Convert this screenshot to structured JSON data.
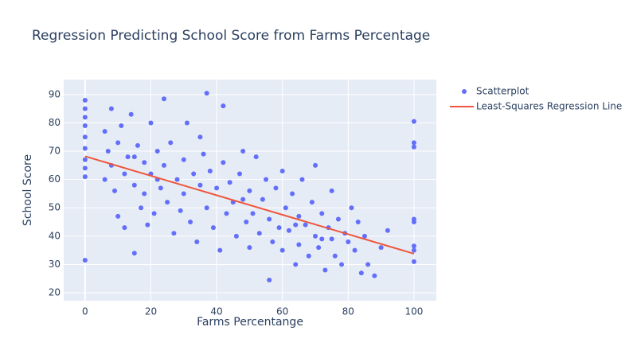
{
  "chart_data": {
    "type": "scatter",
    "title": "Regression Predicting School Score from Farms Percentage",
    "x_label": "Farms Percentange",
    "y_label": "School Score",
    "xlim": [
      -6.5,
      106.8
    ],
    "ylim": [
      17.2,
      95.3
    ],
    "xticks": [
      0,
      20,
      40,
      60,
      80,
      100
    ],
    "yticks": [
      20,
      30,
      40,
      50,
      60,
      70,
      80,
      90
    ],
    "grid": true,
    "background": "#e5ecf6",
    "legend": "right",
    "series": [
      {
        "name": "Scatterplot",
        "type": "scatter",
        "color": "#636efa",
        "x": [
          0,
          0,
          0,
          0,
          0,
          0,
          0,
          0,
          0,
          0,
          6,
          6,
          7,
          8,
          8,
          9,
          10,
          10,
          11,
          12,
          12,
          13,
          14,
          15,
          15,
          16,
          17,
          18,
          18,
          19,
          20,
          20,
          21,
          22,
          23,
          24,
          24,
          25,
          26,
          27,
          28,
          29,
          30,
          30,
          31,
          32,
          33,
          34,
          35,
          36,
          37,
          37,
          38,
          39,
          40,
          41,
          42,
          42,
          43,
          44,
          45,
          46,
          47,
          48,
          49,
          50,
          50,
          51,
          52,
          53,
          54,
          55,
          56,
          56,
          57,
          58,
          59,
          60,
          60,
          61,
          62,
          63,
          64,
          65,
          65,
          66,
          67,
          68,
          69,
          70,
          70,
          71,
          72,
          73,
          74,
          75,
          75,
          76,
          77,
          78,
          79,
          80,
          81,
          82,
          83,
          84,
          85,
          86,
          88,
          90,
          92,
          100,
          100,
          100,
          100,
          100,
          100,
          100,
          100,
          35,
          15,
          48,
          64,
          72,
          22
        ],
        "y": [
          88,
          85,
          82,
          79,
          75,
          71,
          67,
          64,
          61,
          31.5,
          77,
          60,
          70,
          85,
          65,
          56,
          73,
          47,
          79,
          62,
          43,
          68,
          83,
          34,
          58,
          72,
          50,
          66,
          55,
          44,
          80,
          62,
          48,
          70,
          57,
          88.5,
          65,
          52,
          73,
          41,
          60,
          49,
          67,
          55,
          80,
          45,
          62,
          38,
          58,
          69,
          90.5,
          50,
          63,
          43,
          57,
          35,
          86,
          66,
          48,
          59,
          52,
          40,
          62,
          70,
          45,
          56,
          36,
          48,
          68,
          41,
          53,
          60,
          24.5,
          46,
          38,
          57,
          43,
          63,
          35,
          50,
          42,
          55,
          30,
          47,
          37,
          60,
          44,
          33,
          52,
          40,
          65,
          36,
          48,
          28,
          43,
          39,
          56,
          33,
          46,
          30,
          41,
          38,
          50,
          35,
          45,
          27,
          40,
          30,
          26,
          36,
          42,
          80.5,
          73,
          71.5,
          46,
          45,
          36.5,
          35,
          31,
          75,
          68,
          53,
          44,
          39,
          60
        ]
      },
      {
        "name": "Least-Squares Regression Line",
        "type": "line",
        "color": "#ef553b",
        "x": [
          0,
          100
        ],
        "y": [
          68.2,
          33.8
        ]
      }
    ]
  }
}
